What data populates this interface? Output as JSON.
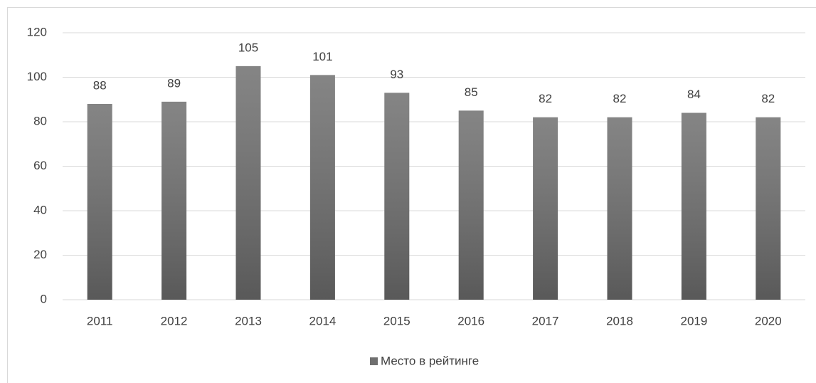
{
  "chart_data": {
    "type": "bar",
    "categories": [
      "2011",
      "2012",
      "2013",
      "2014",
      "2015",
      "2016",
      "2017",
      "2018",
      "2019",
      "2020"
    ],
    "series": [
      {
        "name": "Место в рейтинге",
        "color": "#6f6f6f",
        "values": [
          88,
          89,
          105,
          101,
          93,
          85,
          82,
          82,
          84,
          82
        ]
      }
    ],
    "ylim": [
      0,
      120
    ],
    "yticks": [
      0,
      20,
      40,
      60,
      80,
      100,
      120
    ],
    "grid": true,
    "legend": "bottom"
  }
}
